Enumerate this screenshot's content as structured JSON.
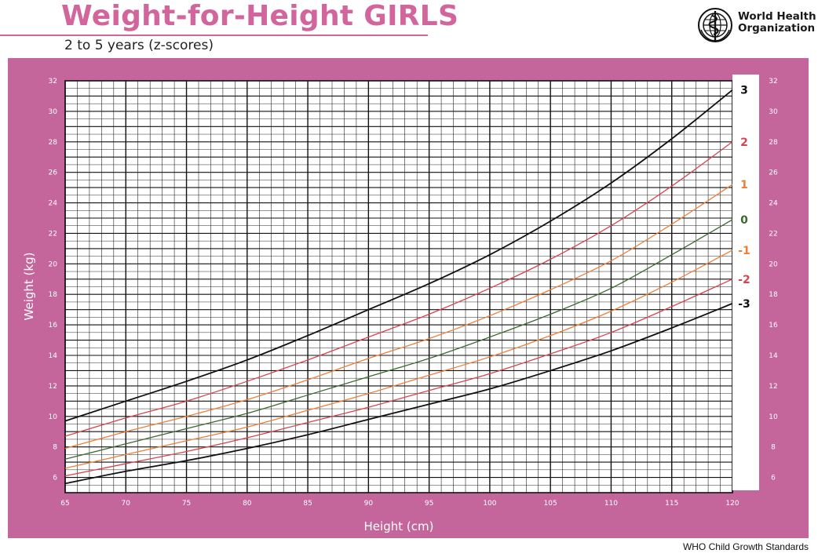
{
  "header": {
    "title": "Weight-for-Height GIRLS",
    "subtitle": "2 to 5 years (z-scores)",
    "org_line1": "World Health",
    "org_line2": "Organization",
    "logo_icon": "who-emblem-icon"
  },
  "footer": {
    "text": "WHO Child Growth Standards"
  },
  "colors": {
    "title": "#d1659c",
    "panel": "#c4669b",
    "grid": "#111111",
    "sd3": "#111111",
    "sd2": "#d9434f",
    "sd1": "#ef7d35",
    "median": "#3a6a2e"
  },
  "chart_data": {
    "type": "line",
    "title": "Weight-for-Height GIRLS",
    "subtitle": "2 to 5 years (z-scores)",
    "xlabel": "Height (cm)",
    "ylabel": "Weight (kg)",
    "xlim": [
      65,
      120
    ],
    "ylim": [
      5,
      32
    ],
    "x_ticks": [
      65,
      70,
      75,
      80,
      85,
      90,
      95,
      100,
      105,
      110,
      115,
      120
    ],
    "y_ticks": [
      6,
      8,
      10,
      12,
      14,
      16,
      18,
      20,
      22,
      24,
      26,
      28,
      30,
      32
    ],
    "grid": true,
    "x": [
      65,
      70,
      75,
      80,
      85,
      90,
      95,
      100,
      105,
      110,
      115,
      120
    ],
    "series": [
      {
        "name": "3",
        "color": "#111111",
        "values": [
          9.7,
          11.0,
          12.3,
          13.7,
          15.3,
          17.0,
          18.7,
          20.6,
          22.8,
          25.3,
          28.2,
          31.4
        ]
      },
      {
        "name": "2",
        "color": "#d9434f",
        "values": [
          8.7,
          9.9,
          11.0,
          12.3,
          13.7,
          15.2,
          16.7,
          18.4,
          20.3,
          22.5,
          25.1,
          28.0
        ]
      },
      {
        "name": "1",
        "color": "#ef7d35",
        "values": [
          7.9,
          9.0,
          10.0,
          11.1,
          12.4,
          13.8,
          15.1,
          16.6,
          18.3,
          20.2,
          22.6,
          25.2
        ]
      },
      {
        "name": "0",
        "color": "#3a6a2e",
        "values": [
          7.2,
          8.2,
          9.2,
          10.2,
          11.4,
          12.6,
          13.8,
          15.2,
          16.7,
          18.4,
          20.6,
          22.9
        ]
      },
      {
        "name": "-1",
        "color": "#ef7d35",
        "values": [
          6.6,
          7.5,
          8.4,
          9.3,
          10.4,
          11.5,
          12.7,
          13.9,
          15.3,
          16.9,
          18.8,
          20.9
        ]
      },
      {
        "name": "-2",
        "color": "#d9434f",
        "values": [
          6.1,
          6.9,
          7.7,
          8.6,
          9.6,
          10.6,
          11.7,
          12.8,
          14.1,
          15.5,
          17.2,
          19.0
        ]
      },
      {
        "name": "-3",
        "color": "#111111",
        "values": [
          5.6,
          6.4,
          7.1,
          7.9,
          8.8,
          9.8,
          10.8,
          11.8,
          13.0,
          14.3,
          15.8,
          17.4
        ]
      }
    ]
  }
}
